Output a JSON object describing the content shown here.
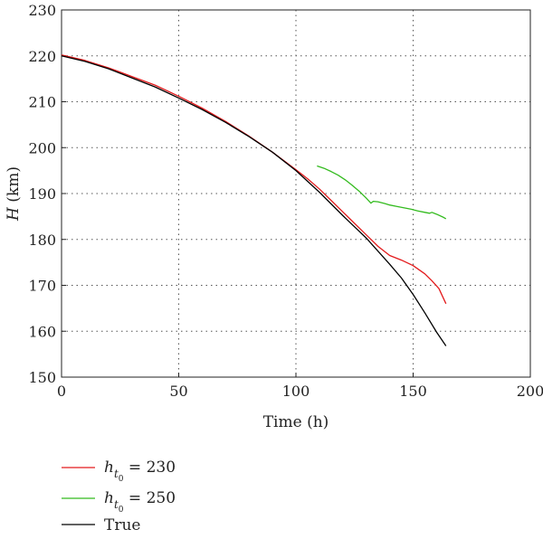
{
  "chart_data": {
    "type": "line",
    "title": "",
    "xlabel": "Time (h)",
    "ylabel_var": "H",
    "ylabel_unit": " (km)",
    "xlim": [
      0,
      200
    ],
    "ylim": [
      150,
      230
    ],
    "xticks": [
      0,
      50,
      100,
      150,
      200
    ],
    "yticks": [
      150,
      160,
      170,
      180,
      190,
      200,
      210,
      220,
      230
    ],
    "grid": true,
    "legend_position": "below",
    "series": [
      {
        "name": "h_t0 = 230",
        "legend_var": "h",
        "legend_sub": "t",
        "legend_subsub": "0",
        "legend_val": " = 230",
        "color": "#e31a1c",
        "x": [
          0,
          10,
          20,
          30,
          40,
          50,
          60,
          70,
          80,
          90,
          100,
          105,
          110,
          115,
          120,
          125,
          130,
          135,
          140,
          145,
          150,
          155,
          158,
          161,
          164
        ],
        "y": [
          220.2,
          219.0,
          217.4,
          215.5,
          213.6,
          211.2,
          208.6,
          205.7,
          202.5,
          199.0,
          195.2,
          193.2,
          191.0,
          188.5,
          186.0,
          183.5,
          181.0,
          178.5,
          176.5,
          175.5,
          174.3,
          172.5,
          171.0,
          169.3,
          166.0
        ]
      },
      {
        "name": "h_t0 = 250",
        "legend_var": "h",
        "legend_sub": "t",
        "legend_subsub": "0",
        "legend_val": " = 250",
        "color": "#33bb1e",
        "x": [
          109,
          112,
          115,
          118,
          121,
          124,
          127,
          130,
          132,
          133,
          135,
          138,
          140,
          143,
          146,
          149,
          152,
          155,
          157,
          158,
          160,
          163,
          164
        ],
        "y": [
          196.0,
          195.5,
          194.8,
          194.0,
          193.0,
          191.8,
          190.5,
          189.0,
          187.9,
          188.3,
          188.2,
          187.8,
          187.5,
          187.2,
          186.9,
          186.6,
          186.2,
          185.9,
          185.7,
          185.9,
          185.5,
          184.8,
          184.5
        ]
      },
      {
        "name": "True",
        "legend_text": "True",
        "color": "#000000",
        "x": [
          0,
          10,
          20,
          30,
          40,
          50,
          60,
          70,
          80,
          90,
          100,
          110,
          120,
          130,
          140,
          145,
          150,
          155,
          160,
          164
        ],
        "y": [
          220.0,
          218.8,
          217.2,
          215.2,
          213.2,
          210.8,
          208.3,
          205.5,
          202.4,
          199.0,
          195.0,
          190.3,
          185.2,
          180.3,
          174.6,
          171.6,
          168.0,
          164.0,
          159.8,
          156.8
        ]
      }
    ]
  }
}
